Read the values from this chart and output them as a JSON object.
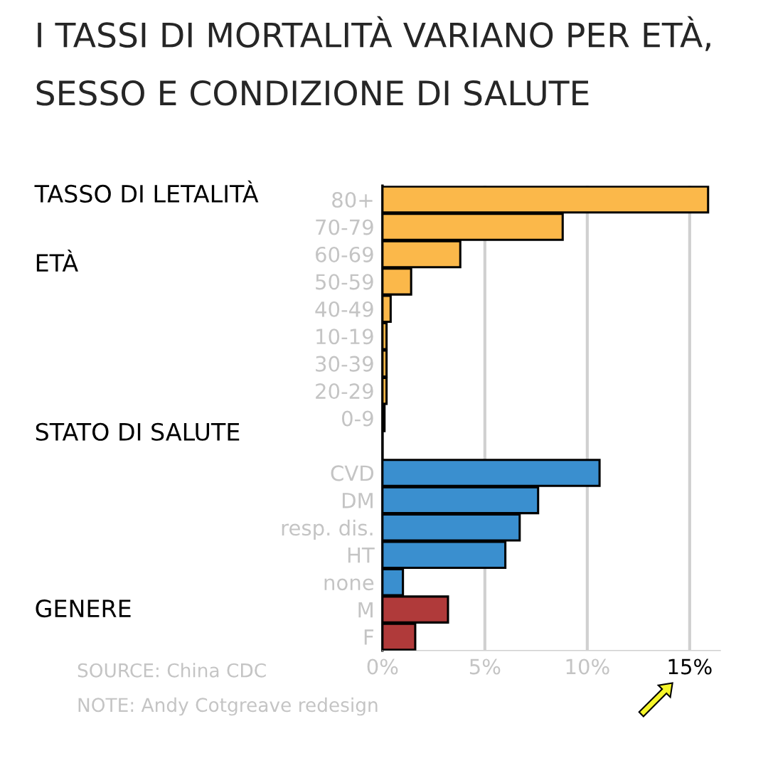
{
  "chart_data": {
    "type": "bar",
    "orientation": "horizontal",
    "title": "I TASSI DI MORTALITÀ VARIANO PER ETÀ, SESSO E CONDIZIONE DI SALUTE",
    "categories": [
      "80+",
      "70-79",
      "60-69",
      "50-59",
      "40-49",
      "10-19",
      "30-39",
      "20-29",
      "0-9",
      null,
      "CVD",
      "DM",
      "resp. dis.",
      "HT",
      "none",
      "M",
      "F"
    ],
    "values": [
      15.9,
      8.8,
      3.8,
      1.4,
      0.4,
      0.2,
      0.2,
      0.2,
      0.1,
      null,
      10.6,
      7.6,
      6.7,
      6.0,
      1.0,
      3.2,
      1.6
    ],
    "colors": [
      "#fbb84a",
      "#fbb84a",
      "#fbb84a",
      "#fbb84a",
      "#fbb84a",
      "#fbb84a",
      "#fbb84a",
      "#fbb84a",
      "#fbb84a",
      "#ffffff",
      "#3a8fcf",
      "#3a8fcf",
      "#3a8fcf",
      "#3a8fcf",
      "#3a8fcf",
      "#b03a3a",
      "#b03a3a"
    ],
    "xlim": [
      0,
      16.5
    ],
    "xticks": [
      {
        "value": 0,
        "label": "0%"
      },
      {
        "value": 5,
        "label": "5%"
      },
      {
        "value": 10,
        "label": "10%"
      },
      {
        "value": 15,
        "label": "15%"
      }
    ],
    "grid": "x",
    "annotations": [
      "TASSO DI LETALITÀ",
      "ETÀ",
      "STATO DI SALUTE",
      "GENERE",
      "SOURCE: China CDC",
      "NOTE: Andy Cotgreave redesign"
    ]
  }
}
